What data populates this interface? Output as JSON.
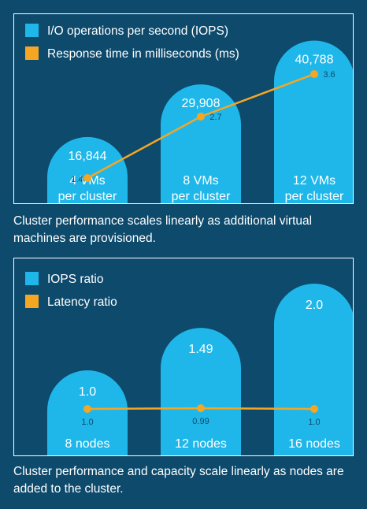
{
  "colors": {
    "background": "#0d4a6c",
    "bar": "#1fb7ea",
    "line": "#f5a623",
    "text": "#ffffff",
    "value_label": "#0d4a6c"
  },
  "chart_data": [
    {
      "type": "bar",
      "legend_position": "top-left",
      "grid": false,
      "legend": [
        {
          "label": "I/O operations per second (IOPS)",
          "color": "#1fb7ea",
          "marker": "square"
        },
        {
          "label": "Response time in milliseconds (ms)",
          "color": "#f5a623",
          "marker": "square"
        }
      ],
      "categories": [
        {
          "line1": "4 VMs",
          "line2": "per cluster"
        },
        {
          "line1": "8 VMs",
          "line2": "per cluster"
        },
        {
          "line1": "12 VMs",
          "line2": "per cluster"
        }
      ],
      "series": [
        {
          "name": "I/O operations per second (IOPS)",
          "type": "bar",
          "values": [
            16844,
            29908,
            40788
          ],
          "labels": [
            "16,844",
            "29,908",
            "40,788"
          ]
        },
        {
          "name": "Response time in milliseconds (ms)",
          "type": "line",
          "values": [
            1.4,
            2.7,
            3.6
          ],
          "labels": [
            "1.4",
            "2.7",
            "3.6"
          ]
        }
      ],
      "caption": "Cluster performance scales linearly as additional virtual machines are provisioned."
    },
    {
      "type": "bar",
      "legend_position": "top-left",
      "grid": false,
      "legend": [
        {
          "label": "IOPS ratio",
          "color": "#1fb7ea",
          "marker": "square"
        },
        {
          "label": "Latency ratio",
          "color": "#f5a623",
          "marker": "square"
        }
      ],
      "categories": [
        {
          "line1": "8 nodes"
        },
        {
          "line1": "12 nodes"
        },
        {
          "line1": "16 nodes"
        }
      ],
      "series": [
        {
          "name": "IOPS ratio",
          "type": "bar",
          "values": [
            1.0,
            1.49,
            2.0
          ],
          "labels": [
            "1.0",
            "1.49",
            "2.0"
          ]
        },
        {
          "name": "Latency ratio",
          "type": "line",
          "values": [
            1.0,
            0.99,
            1.0
          ],
          "labels": [
            "1.0",
            "0.99",
            "1.0"
          ]
        }
      ],
      "caption": "Cluster performance and capacity scale linearly as nodes are added to the cluster."
    }
  ]
}
